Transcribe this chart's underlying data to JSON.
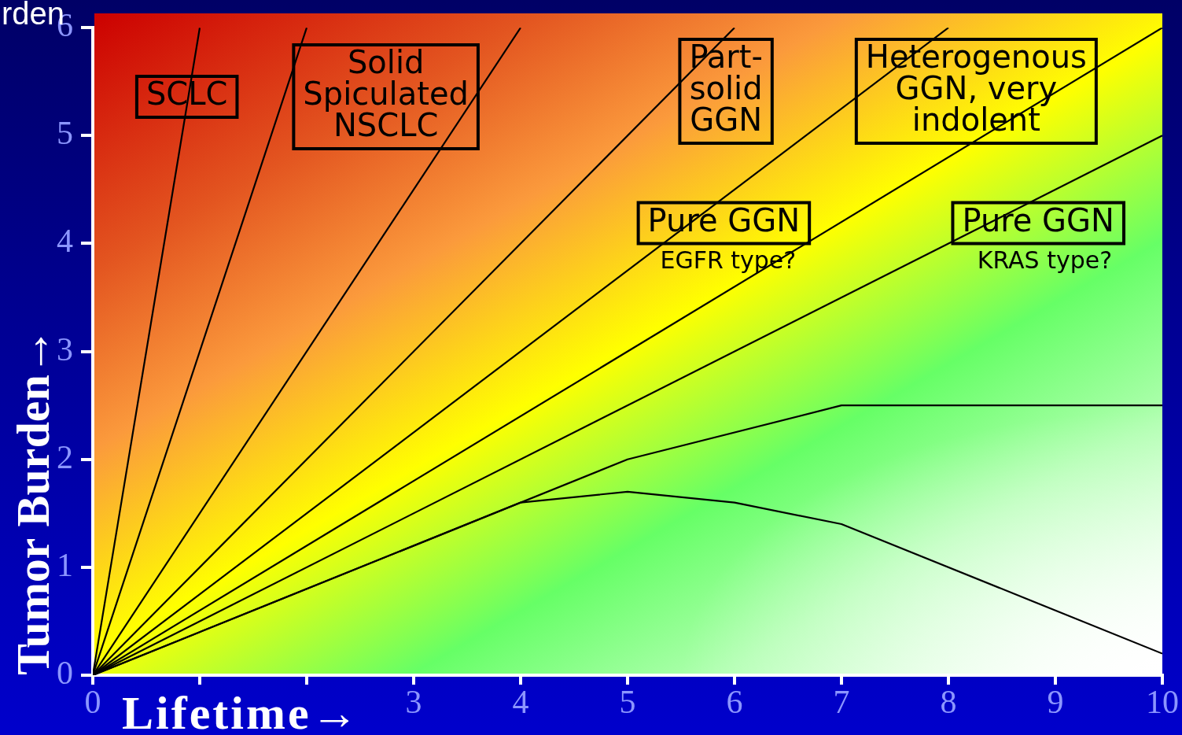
{
  "chart_data": {
    "type": "line",
    "xlabel": "Lifetime→",
    "ylabel": "Tumor Burden→",
    "xlim": [
      0,
      10
    ],
    "xticks": [
      0,
      {
        "value": 1,
        "label": null
      },
      {
        "value": 2,
        "label": null
      },
      3,
      4,
      5,
      6,
      7,
      8,
      9,
      10
    ],
    "ylim": [
      0,
      6
    ],
    "yticks": [
      0,
      1,
      2,
      3,
      4,
      5,
      6
    ],
    "grid": false,
    "legend": false,
    "marker": "none",
    "line_style": "solid",
    "series": [
      {
        "color": "#000000",
        "x": [
          0,
          1
        ],
        "values": [
          0,
          6
        ]
      },
      {
        "color": "#000000",
        "x": [
          0,
          2
        ],
        "values": [
          0,
          6
        ]
      },
      {
        "color": "#000000",
        "x": [
          0,
          4
        ],
        "values": [
          0,
          6
        ]
      },
      {
        "color": "#000000",
        "x": [
          0,
          6
        ],
        "values": [
          0,
          6
        ]
      },
      {
        "color": "#000000",
        "x": [
          0,
          8
        ],
        "values": [
          0,
          6
        ]
      },
      {
        "color": "#000000",
        "x": [
          0,
          10
        ],
        "values": [
          0,
          6
        ]
      },
      {
        "color": "#000000",
        "x": [
          0,
          10
        ],
        "values": [
          0,
          5
        ]
      },
      {
        "color": "#000000",
        "x": [
          0,
          5,
          7,
          10
        ],
        "values": [
          0,
          2,
          2.5,
          2.5
        ]
      },
      {
        "color": "#000000",
        "x": [
          0,
          4,
          5,
          6,
          7,
          10
        ],
        "values": [
          0,
          1.6,
          1.7,
          1.6,
          1.4,
          0.2
        ]
      }
    ],
    "annotations": [
      "SCLC",
      "Solid\nSpiculated\nNSCLC",
      "Part-\nsolid\nGGN",
      "Heterogenous\nGGN, very\nindolent",
      "Pure GGN",
      "EGFR type?",
      "Pure GGN",
      "KRAS type?",
      "rden"
    ]
  }
}
